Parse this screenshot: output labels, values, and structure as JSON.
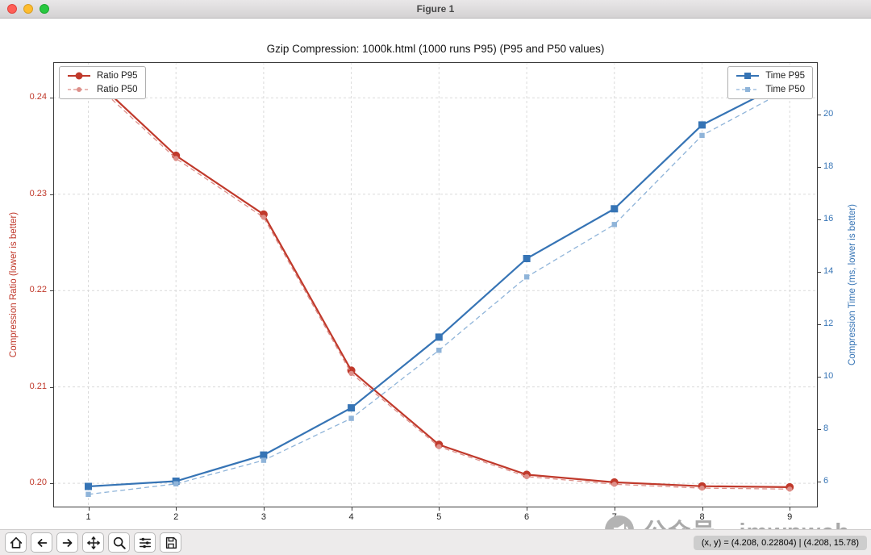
{
  "window": {
    "title": "Figure 1"
  },
  "chart_data": {
    "type": "line",
    "title": "Gzip Compression: 1000k.html (1000 runs P95) (P95 and P50 values)",
    "x": [
      1,
      2,
      3,
      4,
      5,
      6,
      7,
      8,
      9
    ],
    "x_axis": {
      "label": "Compression Level",
      "ticks": [
        1,
        2,
        3,
        4,
        5,
        6,
        7,
        8,
        9
      ],
      "tick_labels": [
        "1",
        "2",
        "3",
        "4",
        "5",
        "6",
        "7",
        "8",
        "9"
      ],
      "range": [
        0.6,
        9.32
      ]
    },
    "left_axis": {
      "label": "Compression Ratio (lower is better)",
      "tick_values": [
        0.2,
        0.21,
        0.22,
        0.23,
        0.24
      ],
      "tick_labels": [
        "0.20",
        "0.21",
        "0.22",
        "0.23",
        "0.24"
      ],
      "range": [
        0.1975,
        0.2437
      ],
      "color": "#c0392b"
    },
    "right_axis": {
      "label": "Compression Time (ms, lower is better)",
      "tick_values": [
        6,
        8,
        10,
        12,
        14,
        16,
        18,
        20
      ],
      "tick_labels": [
        "6",
        "8",
        "10",
        "12",
        "14",
        "16",
        "18",
        "20"
      ],
      "range": [
        5.0,
        22.0
      ],
      "color": "#3674b5"
    },
    "grid": true,
    "legend_positions": [
      "upper left",
      "upper right"
    ],
    "series": [
      {
        "name": "Ratio P95",
        "axis": "left",
        "color": "#c0392b",
        "style": "solid",
        "marker": "circle",
        "values": [
          0.2425,
          0.234,
          0.2279,
          0.2117,
          0.204,
          0.2009,
          0.2001,
          0.1997,
          0.1996
        ]
      },
      {
        "name": "Ratio P50",
        "axis": "left",
        "color": "#dd8f89",
        "style": "dashed",
        "marker": "circle-small",
        "values": [
          0.2421,
          0.2337,
          0.2276,
          0.2114,
          0.2038,
          0.2007,
          0.1999,
          0.1995,
          0.1994
        ]
      },
      {
        "name": "Time P95",
        "axis": "right",
        "color": "#3674b5",
        "style": "solid",
        "marker": "square",
        "values": [
          5.8,
          6.0,
          7.0,
          8.8,
          11.5,
          14.5,
          16.4,
          19.6,
          21.3
        ]
      },
      {
        "name": "Time P50",
        "axis": "right",
        "color": "#8fb4d9",
        "style": "dashed",
        "marker": "square-small",
        "values": [
          5.5,
          5.9,
          6.8,
          8.4,
          11.0,
          13.8,
          15.8,
          19.2,
          21.0
        ]
      }
    ]
  },
  "toolbar": {
    "icons": [
      "home",
      "back",
      "forward",
      "pan",
      "zoom-to-rect",
      "configure-subplots",
      "save"
    ]
  },
  "statusbar": {
    "coordinates": "(x, y) = (4.208, 0.22804) | (4.208, 15.78)"
  },
  "watermark": {
    "text": "公众号 · imwpweb"
  }
}
